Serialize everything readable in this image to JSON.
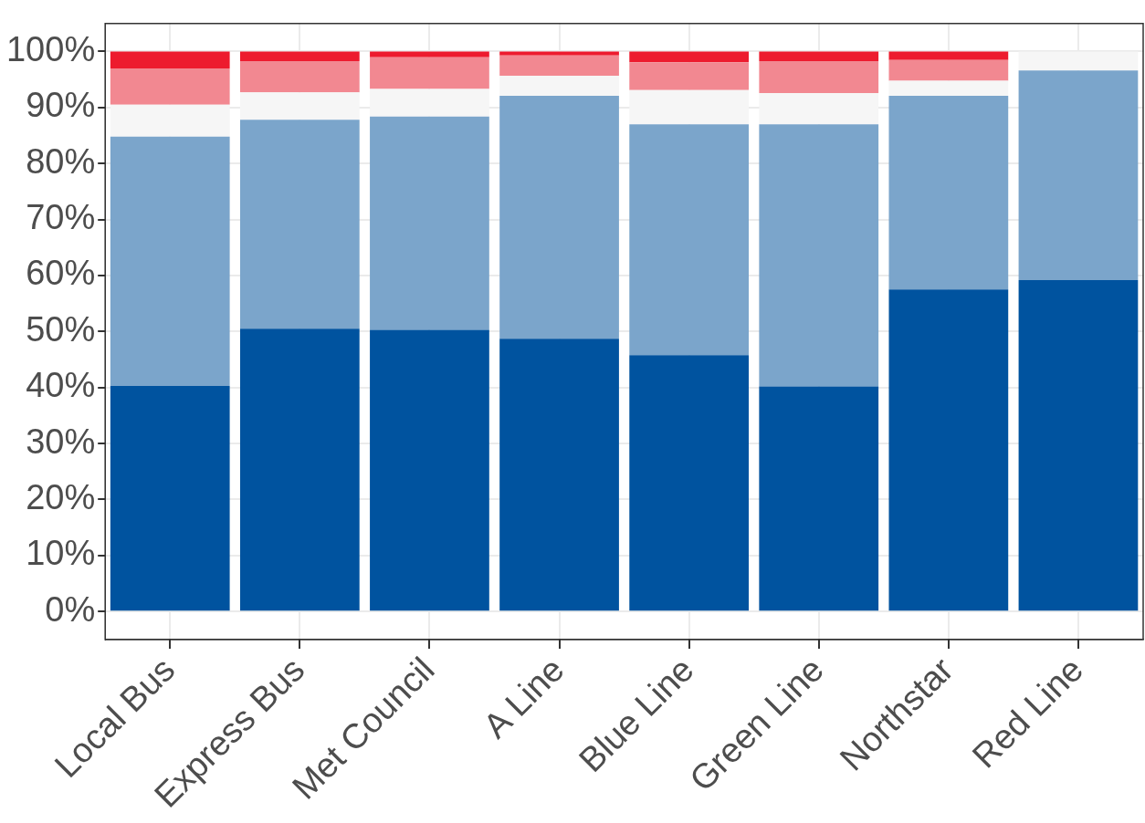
{
  "chart_data": {
    "type": "bar",
    "stacked": true,
    "categories": [
      "Local Bus",
      "Express Bus",
      "Met Council",
      "A Line",
      "Blue Line",
      "Green Line",
      "Northstar",
      "Red Line"
    ],
    "series": [
      {
        "color": "#00539f",
        "values": [
          40.3,
          50.5,
          50.3,
          48.7,
          45.8,
          40.2,
          57.5,
          59.2
        ]
      },
      {
        "color": "#7ba5cb",
        "values": [
          44.5,
          37.3,
          38.1,
          43.4,
          41.2,
          46.8,
          34.6,
          37.4
        ]
      },
      {
        "color": "#f6f6f6",
        "values": [
          5.7,
          4.9,
          4.9,
          3.6,
          6.1,
          5.6,
          2.7,
          3.4
        ]
      },
      {
        "color": "#f28891",
        "values": [
          6.5,
          5.6,
          5.7,
          3.6,
          5.0,
          5.7,
          3.7,
          0
        ]
      },
      {
        "color": "#ed1b2e",
        "values": [
          3.0,
          1.7,
          1.0,
          0.7,
          1.9,
          1.7,
          1.5,
          0
        ]
      }
    ],
    "ylim": [
      -5,
      105
    ],
    "yticks": [
      {
        "value": 0,
        "label": "0%"
      },
      {
        "value": 10,
        "label": "10%"
      },
      {
        "value": 20,
        "label": "20%"
      },
      {
        "value": 30,
        "label": "30%"
      },
      {
        "value": 40,
        "label": "40%"
      },
      {
        "value": 50,
        "label": "50%"
      },
      {
        "value": 60,
        "label": "60%"
      },
      {
        "value": 70,
        "label": "70%"
      },
      {
        "value": 80,
        "label": "80%"
      },
      {
        "value": 90,
        "label": "90%"
      },
      {
        "value": 100,
        "label": "100%"
      }
    ],
    "grid": true,
    "legend": false
  }
}
